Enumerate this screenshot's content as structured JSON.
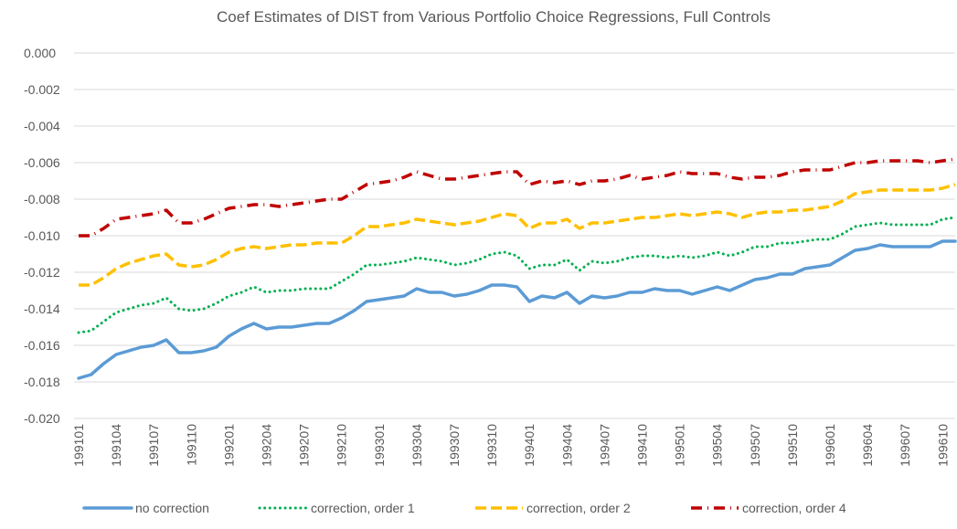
{
  "chart_data": {
    "type": "line",
    "title": "Coef Estimates of DIST from Various Portfolio Choice Regressions, Full Controls",
    "categories": [
      "199101",
      null,
      null,
      "199104",
      null,
      null,
      "199107",
      null,
      null,
      "199110",
      null,
      null,
      "199201",
      null,
      null,
      "199204",
      null,
      null,
      "199207",
      null,
      null,
      "199210",
      null,
      null,
      "199301",
      null,
      null,
      "199304",
      null,
      null,
      "199307",
      null,
      null,
      "199310",
      null,
      null,
      "199401",
      null,
      null,
      "199404",
      null,
      null,
      "199407",
      null,
      null,
      "199410",
      null,
      null,
      "199501",
      null,
      null,
      "199504",
      null,
      null,
      "199507",
      null,
      null,
      "199510",
      null,
      null,
      "199601",
      null,
      null,
      "199604",
      null,
      null,
      "199607",
      null,
      null,
      "199610",
      null
    ],
    "series": [
      {
        "name": "no correction",
        "color": "#5b9bd5",
        "style": "solid",
        "values": [
          -0.0178,
          -0.0176,
          -0.017,
          -0.0165,
          -0.0163,
          -0.0161,
          -0.016,
          -0.0157,
          -0.0164,
          -0.0164,
          -0.0163,
          -0.0161,
          -0.0155,
          -0.0151,
          -0.0148,
          -0.0151,
          -0.015,
          -0.015,
          -0.0149,
          -0.0148,
          -0.0148,
          -0.0145,
          -0.0141,
          -0.0136,
          -0.0135,
          -0.0134,
          -0.0133,
          -0.0129,
          -0.0131,
          -0.0131,
          -0.0133,
          -0.0132,
          -0.013,
          -0.0127,
          -0.0127,
          -0.0128,
          -0.0136,
          -0.0133,
          -0.0134,
          -0.0131,
          -0.0137,
          -0.0133,
          -0.0134,
          -0.0133,
          -0.0131,
          -0.0131,
          -0.0129,
          -0.013,
          -0.013,
          -0.0132,
          -0.013,
          -0.0128,
          -0.013,
          -0.0127,
          -0.0124,
          -0.0123,
          -0.0121,
          -0.0121,
          -0.0118,
          -0.0117,
          -0.0116,
          -0.0112,
          -0.0108,
          -0.0107,
          -0.0105,
          -0.0106,
          -0.0106,
          -0.0106,
          -0.0106,
          -0.0103,
          -0.0103
        ]
      },
      {
        "name": "correction, order 1",
        "color": "#00b050",
        "style": "dotted",
        "values": [
          -0.0153,
          -0.0152,
          -0.0147,
          -0.0142,
          -0.014,
          -0.0138,
          -0.0137,
          -0.0134,
          -0.014,
          -0.0141,
          -0.014,
          -0.0137,
          -0.0133,
          -0.0131,
          -0.0128,
          -0.0131,
          -0.013,
          -0.013,
          -0.0129,
          -0.0129,
          -0.0129,
          -0.0125,
          -0.0121,
          -0.0116,
          -0.0116,
          -0.0115,
          -0.0114,
          -0.0112,
          -0.0113,
          -0.0114,
          -0.0116,
          -0.0115,
          -0.0113,
          -0.011,
          -0.0109,
          -0.0111,
          -0.0118,
          -0.0116,
          -0.0116,
          -0.0113,
          -0.0119,
          -0.0114,
          -0.0115,
          -0.0114,
          -0.0112,
          -0.0111,
          -0.0111,
          -0.0112,
          -0.0111,
          -0.0112,
          -0.0111,
          -0.0109,
          -0.0111,
          -0.0109,
          -0.0106,
          -0.0106,
          -0.0104,
          -0.0104,
          -0.0103,
          -0.0102,
          -0.0102,
          -0.0099,
          -0.0095,
          -0.0094,
          -0.0093,
          -0.0094,
          -0.0094,
          -0.0094,
          -0.0094,
          -0.0091,
          -0.009
        ]
      },
      {
        "name": "correction, order 2",
        "color": "#ffc000",
        "style": "dashed",
        "values": [
          -0.0127,
          -0.0127,
          -0.0123,
          -0.0118,
          -0.0115,
          -0.0113,
          -0.0111,
          -0.011,
          -0.0116,
          -0.0117,
          -0.0116,
          -0.0113,
          -0.0109,
          -0.0107,
          -0.0106,
          -0.0107,
          -0.0106,
          -0.0105,
          -0.0105,
          -0.0104,
          -0.0104,
          -0.0104,
          -0.01,
          -0.0095,
          -0.0095,
          -0.0094,
          -0.0093,
          -0.0091,
          -0.0092,
          -0.0093,
          -0.0094,
          -0.0093,
          -0.0092,
          -0.009,
          -0.0088,
          -0.0089,
          -0.0096,
          -0.0093,
          -0.0093,
          -0.0091,
          -0.0096,
          -0.0093,
          -0.0093,
          -0.0092,
          -0.0091,
          -0.009,
          -0.009,
          -0.0089,
          -0.0088,
          -0.0089,
          -0.0088,
          -0.0087,
          -0.0088,
          -0.009,
          -0.0088,
          -0.0087,
          -0.0087,
          -0.0086,
          -0.0086,
          -0.0085,
          -0.0084,
          -0.0081,
          -0.0077,
          -0.0076,
          -0.0075,
          -0.0075,
          -0.0075,
          -0.0075,
          -0.0075,
          -0.0074,
          -0.0072
        ]
      },
      {
        "name": "correction, order 4",
        "color": "#c00000",
        "style": "dashdot",
        "values": [
          -0.01,
          -0.01,
          -0.0096,
          -0.0091,
          -0.009,
          -0.0089,
          -0.0088,
          -0.0086,
          -0.0093,
          -0.0093,
          -0.0091,
          -0.0088,
          -0.0085,
          -0.0084,
          -0.0083,
          -0.0083,
          -0.0084,
          -0.0083,
          -0.0082,
          -0.0081,
          -0.008,
          -0.008,
          -0.0076,
          -0.0072,
          -0.0071,
          -0.007,
          -0.0068,
          -0.0065,
          -0.0067,
          -0.0069,
          -0.0069,
          -0.0068,
          -0.0067,
          -0.0066,
          -0.0065,
          -0.0065,
          -0.0072,
          -0.007,
          -0.0071,
          -0.007,
          -0.0072,
          -0.007,
          -0.007,
          -0.0069,
          -0.0067,
          -0.0069,
          -0.0068,
          -0.0067,
          -0.0065,
          -0.0066,
          -0.0066,
          -0.0066,
          -0.0068,
          -0.0069,
          -0.0068,
          -0.0068,
          -0.0067,
          -0.0065,
          -0.0064,
          -0.0064,
          -0.0064,
          -0.0062,
          -0.006,
          -0.006,
          -0.0059,
          -0.0059,
          -0.0059,
          -0.0059,
          -0.006,
          -0.0059,
          -0.0058
        ]
      }
    ],
    "ylim": [
      -0.02,
      0.0
    ],
    "yticks": [
      {
        "value": 0.0,
        "label": "0.000"
      },
      {
        "value": -0.002,
        "label": "-0.002"
      },
      {
        "value": -0.004,
        "label": "-0.004"
      },
      {
        "value": -0.006,
        "label": "-0.006"
      },
      {
        "value": -0.008,
        "label": "-0.008"
      },
      {
        "value": -0.01,
        "label": "-0.010"
      },
      {
        "value": -0.012,
        "label": "-0.012"
      },
      {
        "value": -0.014,
        "label": "-0.014"
      },
      {
        "value": -0.016,
        "label": "-0.016"
      },
      {
        "value": -0.018,
        "label": "-0.018"
      },
      {
        "value": -0.02,
        "label": "-0.020"
      }
    ],
    "grid": true,
    "legend": "bottom"
  }
}
